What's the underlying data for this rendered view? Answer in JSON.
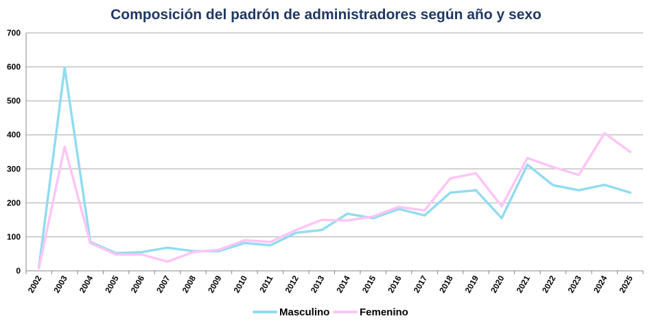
{
  "chart_data": {
    "type": "line",
    "title": "Composición del padrón de administradores según año y sexo",
    "xlabel": "",
    "ylabel": "",
    "ylim": [
      0,
      700
    ],
    "yticks": [
      0,
      100,
      200,
      300,
      400,
      500,
      600,
      700
    ],
    "grid": true,
    "legend_position": "bottom",
    "categories": [
      "2002",
      "2003",
      "2004",
      "2005",
      "2006",
      "2007",
      "2008",
      "2009",
      "2010",
      "2011",
      "2012",
      "2013",
      "2014",
      "2015",
      "2016",
      "2017",
      "2018",
      "2019",
      "2020",
      "2021",
      "2022",
      "2023",
      "2024",
      "2025"
    ],
    "series": [
      {
        "name": "Masculino",
        "color": "#92dcf0",
        "values": [
          10,
          598,
          85,
          52,
          55,
          68,
          58,
          58,
          82,
          75,
          112,
          120,
          168,
          155,
          182,
          163,
          230,
          237,
          155,
          312,
          252,
          237,
          253,
          230
        ]
      },
      {
        "name": "Femenino",
        "color": "#fec5f6",
        "values": [
          8,
          365,
          82,
          48,
          48,
          27,
          55,
          62,
          90,
          85,
          120,
          150,
          148,
          160,
          188,
          178,
          272,
          287,
          190,
          332,
          305,
          282,
          405,
          350
        ]
      }
    ]
  }
}
